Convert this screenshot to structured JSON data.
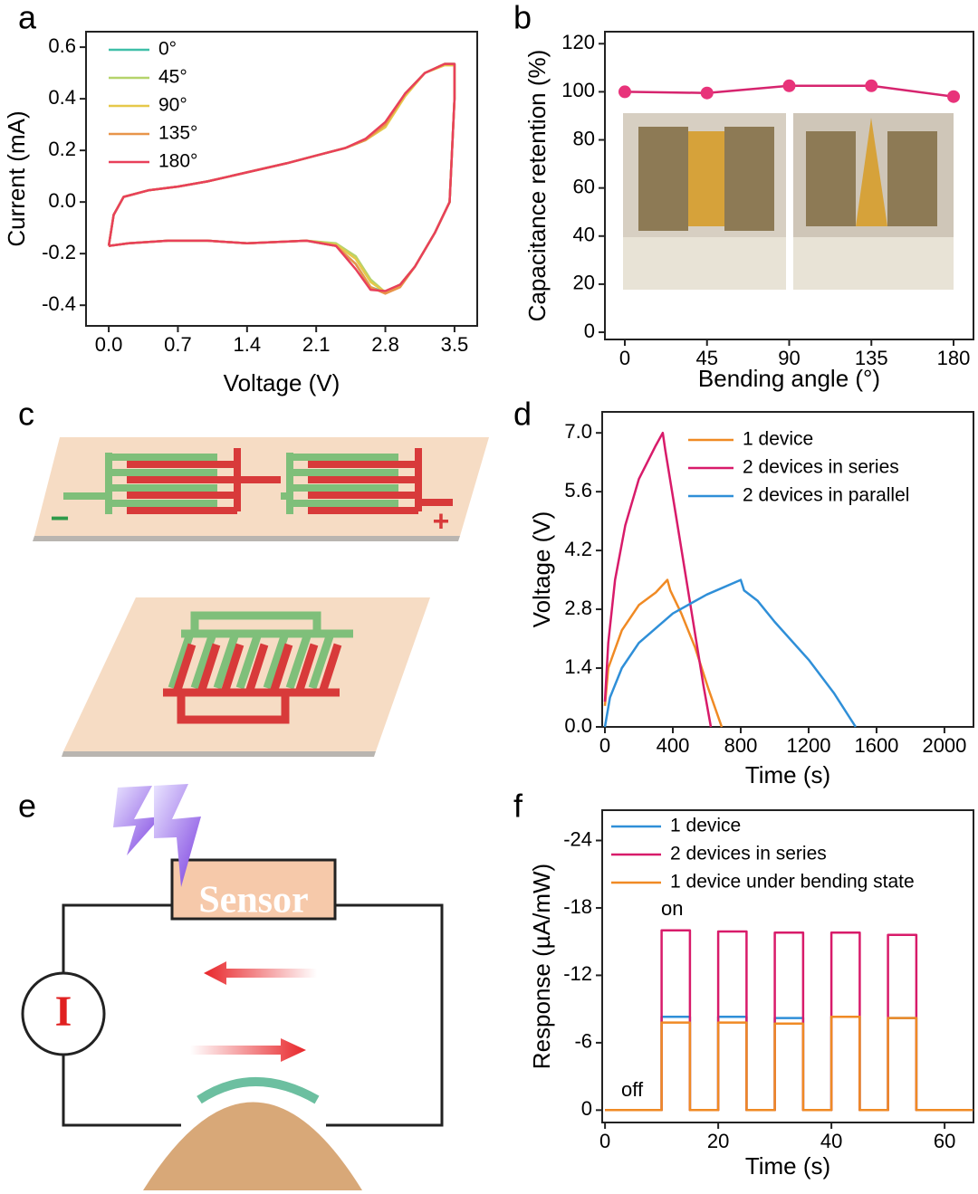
{
  "chart_data": [
    {
      "panel": "a",
      "type": "line",
      "xlabel": "Voltage (V)",
      "ylabel": "Current (mA)",
      "x": [
        0,
        0.05,
        0.15,
        0.4,
        0.7,
        1.0,
        1.4,
        1.8,
        2.1,
        2.4,
        2.6,
        2.8,
        3.0,
        3.2,
        3.4,
        3.5,
        3.5,
        3.45,
        3.3,
        3.1,
        2.95,
        2.8,
        2.65,
        2.5,
        2.3,
        2.0,
        1.4,
        1.0,
        0.6,
        0.2,
        0
      ],
      "series": [
        {
          "name": "0°",
          "color": "#3fbfa8",
          "values": [
            -0.17,
            -0.05,
            0.02,
            0.045,
            0.06,
            0.08,
            0.115,
            0.15,
            0.18,
            0.21,
            0.24,
            0.3,
            0.42,
            0.5,
            0.535,
            0.535,
            0.4,
            0.0,
            -0.12,
            -0.25,
            -0.32,
            -0.35,
            -0.33,
            -0.24,
            -0.17,
            -0.15,
            -0.16,
            -0.15,
            -0.15,
            -0.16,
            -0.17
          ]
        },
        {
          "name": "45°",
          "color": "#b5d36b",
          "values": [
            -0.17,
            -0.05,
            0.02,
            0.045,
            0.06,
            0.08,
            0.115,
            0.15,
            0.18,
            0.21,
            0.24,
            0.29,
            0.42,
            0.5,
            0.535,
            0.535,
            0.4,
            0.0,
            -0.12,
            -0.25,
            -0.32,
            -0.35,
            -0.3,
            -0.21,
            -0.16,
            -0.15,
            -0.16,
            -0.15,
            -0.15,
            -0.16,
            -0.17
          ]
        },
        {
          "name": "90°",
          "color": "#e6c84a",
          "values": [
            -0.17,
            -0.05,
            0.02,
            0.045,
            0.06,
            0.08,
            0.115,
            0.15,
            0.18,
            0.21,
            0.24,
            0.29,
            0.41,
            0.5,
            0.53,
            0.53,
            0.4,
            0.0,
            -0.12,
            -0.25,
            -0.32,
            -0.35,
            -0.31,
            -0.22,
            -0.165,
            -0.15,
            -0.16,
            -0.15,
            -0.15,
            -0.16,
            -0.17
          ]
        },
        {
          "name": "135°",
          "color": "#e8954a",
          "values": [
            -0.17,
            -0.05,
            0.02,
            0.045,
            0.06,
            0.08,
            0.115,
            0.15,
            0.18,
            0.21,
            0.24,
            0.3,
            0.42,
            0.5,
            0.535,
            0.535,
            0.4,
            0.0,
            -0.12,
            -0.25,
            -0.33,
            -0.355,
            -0.33,
            -0.24,
            -0.17,
            -0.15,
            -0.16,
            -0.15,
            -0.15,
            -0.16,
            -0.17
          ]
        },
        {
          "name": "180°",
          "color": "#e8405a",
          "values": [
            -0.17,
            -0.05,
            0.02,
            0.045,
            0.06,
            0.08,
            0.115,
            0.15,
            0.18,
            0.21,
            0.245,
            0.31,
            0.42,
            0.5,
            0.535,
            0.535,
            0.4,
            0.0,
            -0.12,
            -0.25,
            -0.32,
            -0.345,
            -0.34,
            -0.26,
            -0.17,
            -0.15,
            -0.16,
            -0.15,
            -0.15,
            -0.16,
            -0.17
          ]
        }
      ],
      "xlim": [
        -0.23,
        3.73
      ],
      "ylim": [
        -0.48,
        0.66
      ],
      "xticks": [
        {
          "value": 0,
          "label": "0.0"
        },
        0.7,
        1.4,
        2.1,
        2.8,
        3.5
      ],
      "yticks": [
        -0.4,
        -0.2,
        {
          "value": 0,
          "label": "0.0"
        },
        0.2,
        0.4,
        0.6
      ]
    },
    {
      "panel": "b",
      "type": "line",
      "markers": true,
      "xlabel": "Bending angle (°)",
      "ylabel": "Capacitance retention (%)",
      "x": [
        0,
        45,
        90,
        135,
        180
      ],
      "values": [
        100,
        99.5,
        102.5,
        102.5,
        98
      ],
      "color": "#d6246e",
      "xlim": [
        -10.9,
        190.9
      ],
      "ylim": [
        -3,
        125
      ],
      "xticks": [
        0,
        45,
        90,
        135,
        180
      ],
      "yticks": [
        0,
        20,
        40,
        60,
        80,
        100,
        120
      ]
    },
    {
      "panel": "d",
      "type": "line",
      "xlabel": "Time (s)",
      "ylabel": "Voltage (V)",
      "series": [
        {
          "name": "1 device",
          "color": "#f08a24",
          "x": [
            0,
            20,
            100,
            200,
            300,
            368,
            385,
            450,
            530,
            610,
            688
          ],
          "values": [
            0.5,
            1.4,
            2.3,
            2.9,
            3.2,
            3.5,
            3.25,
            2.7,
            1.9,
            0.9,
            0
          ]
        },
        {
          "name": "2 devices in series",
          "color": "#d81b6a",
          "x": [
            0,
            20,
            60,
            120,
            200,
            300,
            341,
            355,
            420,
            500,
            580,
            624
          ],
          "values": [
            0.6,
            2.0,
            3.5,
            4.8,
            5.9,
            6.7,
            7.0,
            6.6,
            5.0,
            3.0,
            1.0,
            0
          ]
        },
        {
          "name": "2 devices in parallel",
          "color": "#2f8fd8",
          "x": [
            0,
            30,
            100,
            200,
            400,
            600,
            800,
            820,
            900,
            1000,
            1200,
            1350,
            1477
          ],
          "values": [
            0,
            0.7,
            1.4,
            2.0,
            2.7,
            3.15,
            3.5,
            3.25,
            3.0,
            2.5,
            1.6,
            0.8,
            0
          ]
        }
      ],
      "xlim": [
        -16,
        2171
      ],
      "ylim": [
        0,
        7.5
      ],
      "xticks": [
        0,
        400,
        800,
        1200,
        1600,
        2000
      ],
      "yticks": [
        {
          "value": 0,
          "label": "0.0"
        },
        1.4,
        2.8,
        4.2,
        5.6,
        {
          "value": 7,
          "label": "7.0"
        }
      ]
    },
    {
      "panel": "f",
      "type": "line",
      "xlabel": "Time (s)",
      "ylabel": "Response (µA/mW)",
      "annotations": [
        "on",
        "off"
      ],
      "x": [
        0,
        10,
        10,
        15,
        15,
        20,
        20,
        25,
        25,
        30,
        30,
        35,
        35,
        40,
        40,
        45,
        45,
        50,
        50,
        55,
        55,
        65
      ],
      "series": [
        {
          "name": "1 device",
          "color": "#2f8fd8",
          "values": [
            0,
            0,
            -8.3,
            -8.3,
            0,
            0,
            -8.3,
            -8.3,
            0,
            0,
            -8.2,
            -8.2,
            0,
            0,
            -8.3,
            -8.3,
            0,
            0,
            -8.2,
            -8.2,
            0,
            0
          ]
        },
        {
          "name": "2 devices in series",
          "color": "#d81b6a",
          "values": [
            0,
            0,
            -16.0,
            -16.0,
            0,
            0,
            -15.9,
            -15.9,
            0,
            0,
            -15.8,
            -15.8,
            0,
            0,
            -15.8,
            -15.8,
            0,
            0,
            -15.6,
            -15.6,
            0,
            0
          ]
        },
        {
          "name": "1 device under bending state",
          "color": "#f08a24",
          "values": [
            0,
            0,
            -7.8,
            -7.8,
            0,
            0,
            -7.8,
            -7.8,
            0,
            0,
            -7.7,
            -7.7,
            0,
            0,
            -8.3,
            -8.3,
            0,
            0,
            -8.2,
            -8.2,
            0,
            0
          ]
        }
      ],
      "xlim": [
        -0.5,
        65.1
      ],
      "ylim": [
        1.1,
        -26.7
      ],
      "xticks": [
        0,
        20,
        40,
        60
      ],
      "yticks": [
        0,
        -6,
        -12,
        -18,
        -24
      ]
    }
  ],
  "diagram_c": {
    "panel": "c",
    "minus": "−",
    "plus": "+"
  },
  "diagram_e": {
    "panel": "e",
    "sensor": "Sensor",
    "meter": "I"
  }
}
